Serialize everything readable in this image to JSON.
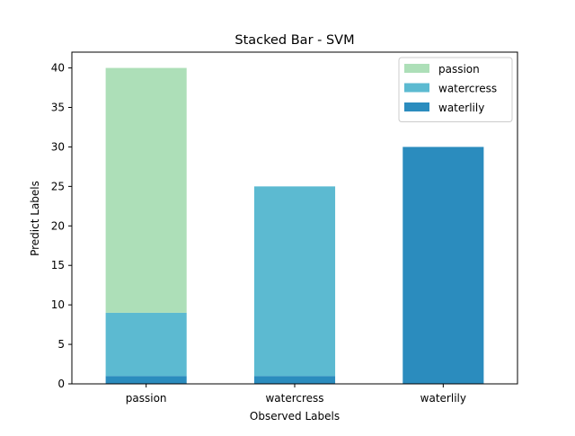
{
  "chart_data": {
    "type": "bar",
    "stacked": true,
    "title": "Stacked Bar - SVM",
    "xlabel": "Observed Labels",
    "ylabel": "Predict Labels",
    "categories": [
      "passion",
      "watercress",
      "waterlily"
    ],
    "ylim": [
      0,
      42
    ],
    "yticks": [
      0,
      5,
      10,
      15,
      20,
      25,
      30,
      35,
      40
    ],
    "grid": false,
    "legend_position": "top-right",
    "series": [
      {
        "name": "waterlily",
        "color": "#2b8cbe",
        "values": [
          1,
          1,
          30
        ]
      },
      {
        "name": "watercress",
        "color": "#5cbad1",
        "values": [
          8,
          24,
          0
        ]
      },
      {
        "name": "passion",
        "color": "#addfb8",
        "values": [
          31,
          0,
          0
        ]
      }
    ],
    "legend_order": [
      "passion",
      "watercress",
      "waterlily"
    ]
  }
}
